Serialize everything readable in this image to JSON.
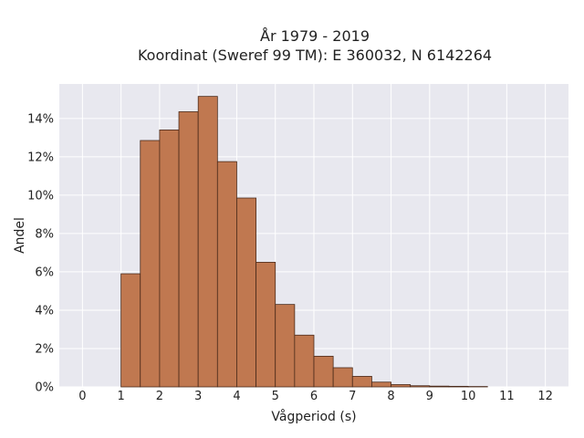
{
  "chart_data": {
    "type": "bar",
    "title_line1": "År 1979 - 2019",
    "title_line2": "Koordinat (Sweref 99 TM): E 360032, N 6142264",
    "xlabel": "Vågperiod (s)",
    "ylabel": "Andel",
    "x_ticks": [
      "0",
      "1",
      "2",
      "3",
      "4",
      "5",
      "6",
      "7",
      "8",
      "9",
      "10",
      "11",
      "12"
    ],
    "y_ticks": [
      "0%",
      "2%",
      "4%",
      "6%",
      "8%",
      "10%",
      "12%",
      "14%"
    ],
    "xlim": [
      -0.6,
      12.6
    ],
    "ylim": [
      0,
      15.8
    ],
    "bin_width": 0.5,
    "bars": [
      {
        "x": 1.0,
        "value": 5.9
      },
      {
        "x": 1.5,
        "value": 12.85
      },
      {
        "x": 2.0,
        "value": 13.4
      },
      {
        "x": 2.5,
        "value": 14.35
      },
      {
        "x": 3.0,
        "value": 15.15
      },
      {
        "x": 3.5,
        "value": 11.75
      },
      {
        "x": 4.0,
        "value": 9.85
      },
      {
        "x": 4.5,
        "value": 6.5
      },
      {
        "x": 5.0,
        "value": 4.3
      },
      {
        "x": 5.5,
        "value": 2.7
      },
      {
        "x": 6.0,
        "value": 1.6
      },
      {
        "x": 6.5,
        "value": 1.0
      },
      {
        "x": 7.0,
        "value": 0.55
      },
      {
        "x": 7.5,
        "value": 0.25
      },
      {
        "x": 8.0,
        "value": 0.12
      },
      {
        "x": 8.5,
        "value": 0.06
      },
      {
        "x": 9.0,
        "value": 0.04
      },
      {
        "x": 9.5,
        "value": 0.03
      },
      {
        "x": 10.0,
        "value": 0.02
      }
    ],
    "grid": true,
    "colors": {
      "bar_fill": "#c07850",
      "bar_stroke": "#4a2a1a",
      "plot_background": "#e8e8ef",
      "grid": "#ffffff"
    }
  }
}
